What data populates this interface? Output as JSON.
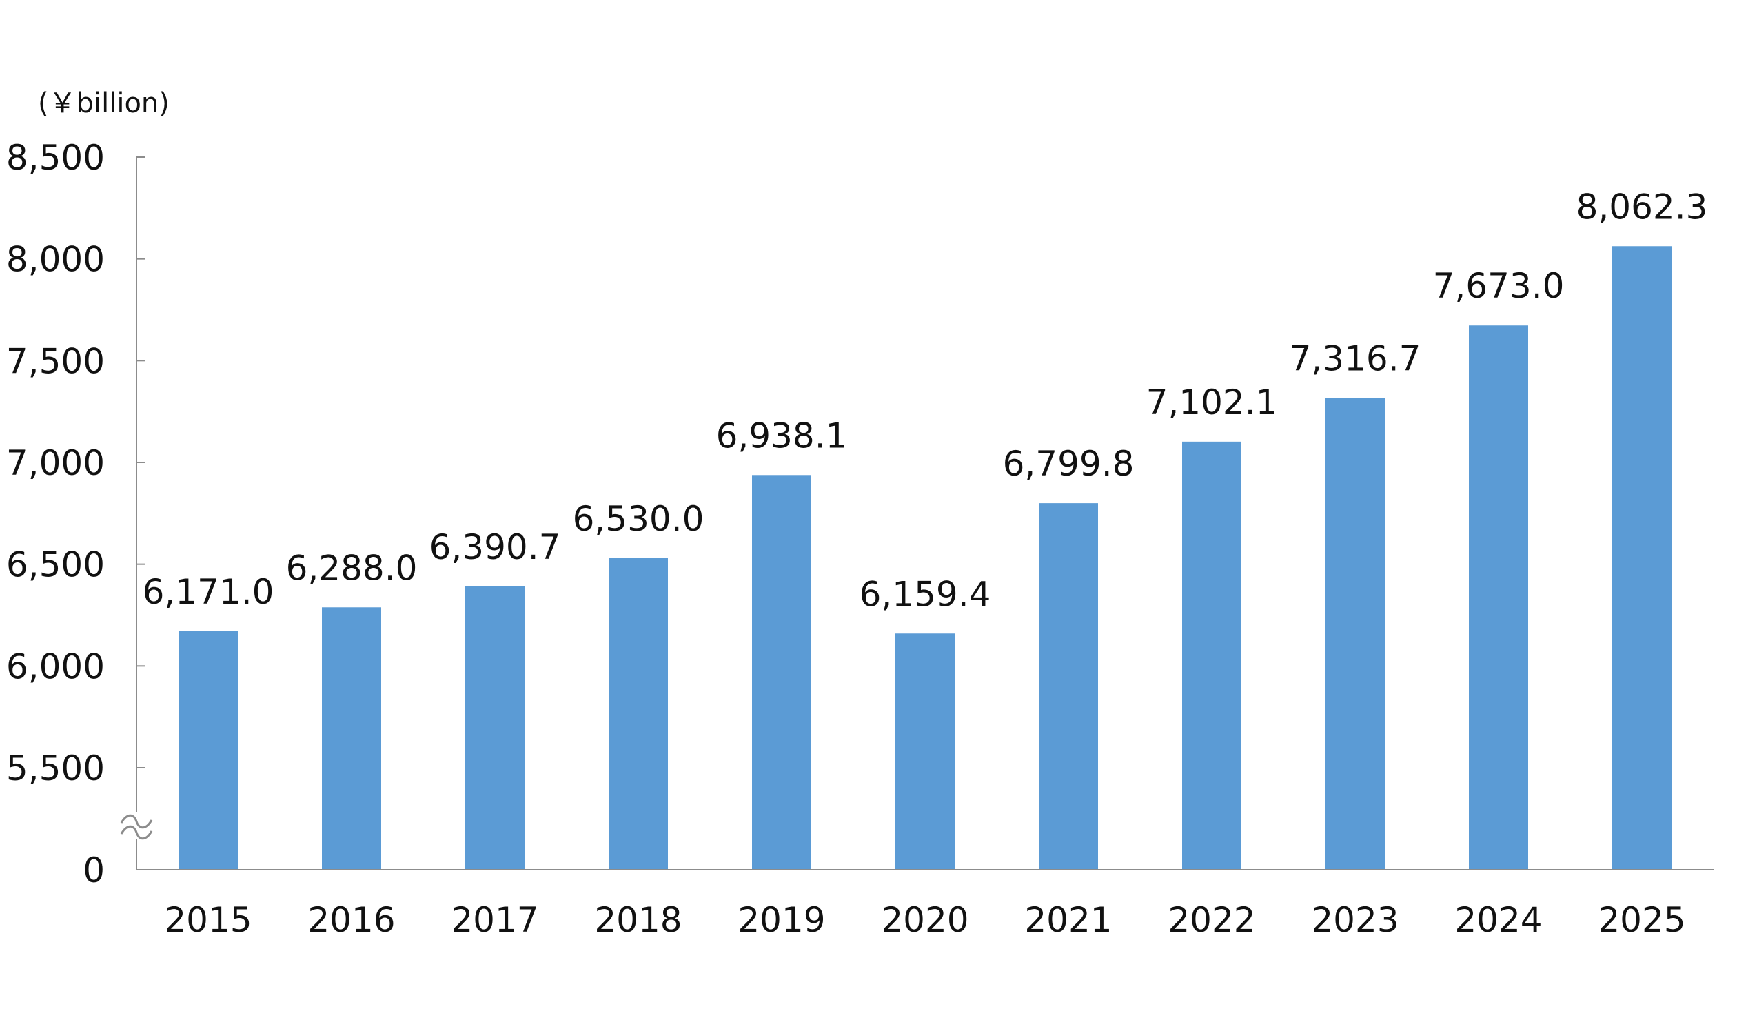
{
  "chart_data": {
    "type": "bar",
    "title": "",
    "unit_label": "(￥billion)",
    "xlabel": "",
    "ylabel": "",
    "categories": [
      "2015",
      "2016",
      "2017",
      "2018",
      "2019",
      "2020",
      "2021",
      "2022",
      "2023",
      "2024",
      "2025"
    ],
    "values": [
      6171.0,
      6288.0,
      6390.7,
      6530.0,
      6938.1,
      6159.4,
      6799.8,
      7102.1,
      7316.7,
      7673.0,
      8062.3
    ],
    "value_labels": [
      "6,171.0",
      "6,288.0",
      "6,390.7",
      "6,530.0",
      "6,938.1",
      "6,159.4",
      "6,799.8",
      "7,102.1",
      "7,316.7",
      "7,673.0",
      "8,062.3"
    ],
    "yticks": [
      0,
      5500,
      6000,
      6500,
      7000,
      7500,
      8000,
      8500
    ],
    "ytick_labels": [
      "0",
      "5,500",
      "6,000",
      "6,500",
      "7,000",
      "7,500",
      "8,000",
      "8,500"
    ],
    "ylim_broken": [
      5000,
      8500
    ],
    "axis_break": true,
    "bar_color": "#5b9bd5",
    "legend": "none",
    "grid": false
  }
}
